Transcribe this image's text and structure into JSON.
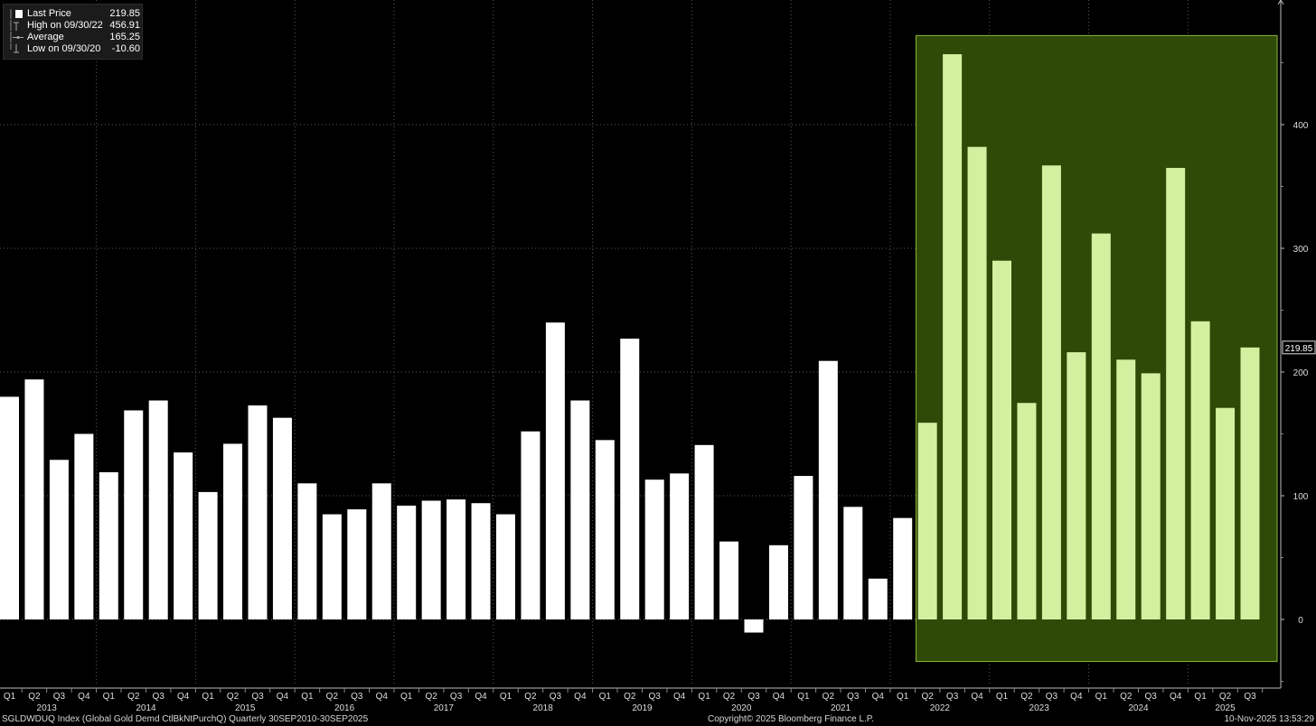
{
  "legend": {
    "last_label": "Last Price",
    "last_value": "219.85",
    "high_label": "High on 09/30/22",
    "high_value": "456.91",
    "avg_label": "Average",
    "avg_value": "165.25",
    "low_label": "Low on 09/30/20",
    "low_value": "-10.60"
  },
  "footer": {
    "left": "SGLDWDUQ Index (Global Gold Demd CtlBkNtPurchQ) Quarterly 30SEP2010-30SEP2025",
    "center": "Copyright© 2025 Bloomberg Finance L.P.",
    "right": "10-Nov-2025 13:53:29"
  },
  "colors": {
    "background": "#000000",
    "bar": "#ffffff",
    "highlight_bar": "#d2f0a0",
    "highlight_region": "#2f4a06",
    "highlight_border": "#8cb43c",
    "grid": "#5a5a5a"
  },
  "chart_data": {
    "type": "bar",
    "categories": [
      "Q1",
      "Q2",
      "Q3",
      "Q4",
      "Q1",
      "Q2",
      "Q3",
      "Q4",
      "Q1",
      "Q2",
      "Q3",
      "Q4",
      "Q1",
      "Q2",
      "Q3",
      "Q4",
      "Q1",
      "Q2",
      "Q3",
      "Q4",
      "Q1",
      "Q2",
      "Q3",
      "Q4",
      "Q1",
      "Q2",
      "Q3",
      "Q4",
      "Q1",
      "Q2",
      "Q3",
      "Q4",
      "Q1",
      "Q2",
      "Q3",
      "Q4",
      "Q1",
      "Q2",
      "Q3",
      "Q4",
      "Q1",
      "Q2",
      "Q3",
      "Q4",
      "Q1",
      "Q2",
      "Q3",
      "Q4",
      "Q1",
      "Q2",
      "Q3"
    ],
    "years": [
      {
        "label": "2013",
        "start": 0
      },
      {
        "label": "2014",
        "start": 4
      },
      {
        "label": "2015",
        "start": 8
      },
      {
        "label": "2016",
        "start": 12
      },
      {
        "label": "2017",
        "start": 16
      },
      {
        "label": "2018",
        "start": 20
      },
      {
        "label": "2019",
        "start": 24
      },
      {
        "label": "2020",
        "start": 28
      },
      {
        "label": "2021",
        "start": 32
      },
      {
        "label": "2022",
        "start": 36
      },
      {
        "label": "2023",
        "start": 40
      },
      {
        "label": "2024",
        "start": 44
      },
      {
        "label": "2025",
        "start": 48
      }
    ],
    "values": [
      180,
      194,
      129,
      150,
      119,
      169,
      177,
      135,
      103,
      142,
      173,
      163,
      110,
      85,
      89,
      110,
      92,
      96,
      97,
      94,
      85,
      152,
      240,
      177,
      145,
      227,
      113,
      118,
      141,
      63,
      -10.6,
      60,
      116,
      209,
      91,
      33,
      82,
      159,
      456.91,
      382,
      290,
      175,
      367,
      216,
      312,
      210,
      199,
      365,
      241,
      171,
      219.85
    ],
    "highlight_start_index": 37,
    "highlight_range": [
      -34,
      472
    ],
    "ylim": [
      -55,
      500
    ],
    "yticks": [
      0,
      100,
      200,
      300,
      400
    ],
    "last_value_label": "219.85",
    "grid": true,
    "legend_position": "top-left"
  }
}
